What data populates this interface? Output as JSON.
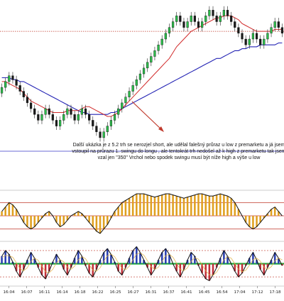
{
  "chart_data": [
    {
      "panel": "price",
      "type": "candlestick",
      "title": "",
      "annotation_lines": [
        "Další ukázka je z 5.2 trh se nerozjel short, ale udělal falešný průraz u low z premarketu a já jsem",
        "vstoupil na průrazu 1. swingu do longu , ale tentokrát trh nedošel až k high z premarketu tak jsem",
        "vzal jen \"350\" Vrchol nebo spodek swingu musí být níže high a výše u low"
      ],
      "levels": [
        {
          "name": "premarket-high",
          "value": 96,
          "style": "dotted",
          "color": "#c0392b"
        },
        {
          "name": "premarket-low",
          "value": 34,
          "style": "solid",
          "color": "#3a3ac8"
        }
      ],
      "price_range": [
        16,
        110
      ],
      "candles": [
        {
          "o": 64,
          "c": 67,
          "h": 69,
          "l": 62
        },
        {
          "o": 67,
          "c": 70,
          "h": 72,
          "l": 65
        },
        {
          "o": 70,
          "c": 73,
          "h": 75,
          "l": 68
        },
        {
          "o": 73,
          "c": 71,
          "h": 75,
          "l": 69
        },
        {
          "o": 71,
          "c": 68,
          "h": 73,
          "l": 66
        },
        {
          "o": 68,
          "c": 65,
          "h": 70,
          "l": 63
        },
        {
          "o": 65,
          "c": 62,
          "h": 67,
          "l": 60
        },
        {
          "o": 62,
          "c": 59,
          "h": 64,
          "l": 57
        },
        {
          "o": 59,
          "c": 56,
          "h": 61,
          "l": 54
        },
        {
          "o": 56,
          "c": 53,
          "h": 58,
          "l": 51
        },
        {
          "o": 53,
          "c": 50,
          "h": 55,
          "l": 48
        },
        {
          "o": 50,
          "c": 53,
          "h": 55,
          "l": 48
        },
        {
          "o": 53,
          "c": 56,
          "h": 58,
          "l": 51
        },
        {
          "o": 56,
          "c": 53,
          "h": 58,
          "l": 51
        },
        {
          "o": 53,
          "c": 50,
          "h": 55,
          "l": 48
        },
        {
          "o": 50,
          "c": 47,
          "h": 52,
          "l": 45
        },
        {
          "o": 47,
          "c": 50,
          "h": 52,
          "l": 45
        },
        {
          "o": 50,
          "c": 53,
          "h": 55,
          "l": 48
        },
        {
          "o": 53,
          "c": 56,
          "h": 58,
          "l": 51
        },
        {
          "o": 56,
          "c": 53,
          "h": 58,
          "l": 51
        },
        {
          "o": 53,
          "c": 50,
          "h": 55,
          "l": 48
        },
        {
          "o": 50,
          "c": 53,
          "h": 55,
          "l": 48
        },
        {
          "o": 53,
          "c": 56,
          "h": 58,
          "l": 51
        },
        {
          "o": 56,
          "c": 53,
          "h": 58,
          "l": 51
        },
        {
          "o": 53,
          "c": 50,
          "h": 55,
          "l": 48
        },
        {
          "o": 50,
          "c": 47,
          "h": 52,
          "l": 45
        },
        {
          "o": 47,
          "c": 44,
          "h": 49,
          "l": 42
        },
        {
          "o": 44,
          "c": 41,
          "h": 46,
          "l": 39
        },
        {
          "o": 41,
          "c": 44,
          "h": 46,
          "l": 39
        },
        {
          "o": 44,
          "c": 47,
          "h": 49,
          "l": 42
        },
        {
          "o": 47,
          "c": 50,
          "h": 52,
          "l": 45
        },
        {
          "o": 50,
          "c": 53,
          "h": 55,
          "l": 48
        },
        {
          "o": 53,
          "c": 56,
          "h": 58,
          "l": 51
        },
        {
          "o": 56,
          "c": 59,
          "h": 61,
          "l": 54
        },
        {
          "o": 59,
          "c": 62,
          "h": 64,
          "l": 57
        },
        {
          "o": 62,
          "c": 65,
          "h": 67,
          "l": 60
        },
        {
          "o": 65,
          "c": 68,
          "h": 70,
          "l": 63
        },
        {
          "o": 68,
          "c": 71,
          "h": 73,
          "l": 66
        },
        {
          "o": 71,
          "c": 74,
          "h": 76,
          "l": 69
        },
        {
          "o": 74,
          "c": 77,
          "h": 79,
          "l": 72
        },
        {
          "o": 77,
          "c": 80,
          "h": 82,
          "l": 75
        },
        {
          "o": 80,
          "c": 83,
          "h": 85,
          "l": 78
        },
        {
          "o": 83,
          "c": 86,
          "h": 88,
          "l": 81
        },
        {
          "o": 86,
          "c": 89,
          "h": 91,
          "l": 84
        },
        {
          "o": 89,
          "c": 92,
          "h": 94,
          "l": 87
        },
        {
          "o": 92,
          "c": 95,
          "h": 97,
          "l": 90
        },
        {
          "o": 95,
          "c": 98,
          "h": 100,
          "l": 93
        },
        {
          "o": 98,
          "c": 101,
          "h": 103,
          "l": 96
        },
        {
          "o": 101,
          "c": 104,
          "h": 106,
          "l": 99
        },
        {
          "o": 104,
          "c": 101,
          "h": 106,
          "l": 99
        },
        {
          "o": 101,
          "c": 98,
          "h": 103,
          "l": 96
        },
        {
          "o": 98,
          "c": 101,
          "h": 103,
          "l": 96
        },
        {
          "o": 101,
          "c": 104,
          "h": 106,
          "l": 99
        },
        {
          "o": 104,
          "c": 101,
          "h": 106,
          "l": 99
        },
        {
          "o": 101,
          "c": 98,
          "h": 103,
          "l": 96
        },
        {
          "o": 98,
          "c": 101,
          "h": 103,
          "l": 96
        },
        {
          "o": 101,
          "c": 104,
          "h": 106,
          "l": 99
        },
        {
          "o": 104,
          "c": 107,
          "h": 109,
          "l": 102
        },
        {
          "o": 107,
          "c": 104,
          "h": 109,
          "l": 102
        },
        {
          "o": 104,
          "c": 101,
          "h": 106,
          "l": 99
        },
        {
          "o": 101,
          "c": 104,
          "h": 106,
          "l": 99
        },
        {
          "o": 104,
          "c": 107,
          "h": 109,
          "l": 102
        },
        {
          "o": 107,
          "c": 104,
          "h": 109,
          "l": 102
        },
        {
          "o": 104,
          "c": 101,
          "h": 106,
          "l": 99
        },
        {
          "o": 101,
          "c": 98,
          "h": 103,
          "l": 96
        },
        {
          "o": 98,
          "c": 95,
          "h": 100,
          "l": 93
        },
        {
          "o": 95,
          "c": 92,
          "h": 97,
          "l": 90
        },
        {
          "o": 92,
          "c": 89,
          "h": 94,
          "l": 87
        },
        {
          "o": 89,
          "c": 92,
          "h": 94,
          "l": 87
        },
        {
          "o": 92,
          "c": 95,
          "h": 97,
          "l": 90
        },
        {
          "o": 95,
          "c": 92,
          "h": 97,
          "l": 90
        },
        {
          "o": 92,
          "c": 89,
          "h": 94,
          "l": 87
        },
        {
          "o": 89,
          "c": 92,
          "h": 94,
          "l": 87
        },
        {
          "o": 92,
          "c": 95,
          "h": 97,
          "l": 90
        },
        {
          "o": 95,
          "c": 98,
          "h": 100,
          "l": 93
        },
        {
          "o": 98,
          "c": 101,
          "h": 103,
          "l": 96
        },
        {
          "o": 101,
          "c": 98,
          "h": 103,
          "l": 96
        },
        {
          "o": 98,
          "c": 95,
          "h": 100,
          "l": 93
        }
      ],
      "ma_fast": [
        70,
        70,
        69,
        68,
        67,
        66,
        64,
        62,
        60,
        59,
        58,
        57,
        56,
        55,
        54,
        54,
        54,
        54,
        55,
        55,
        55,
        55,
        56,
        57,
        57,
        56,
        55,
        54,
        53,
        52,
        52,
        53,
        54,
        56,
        58,
        60,
        62,
        64,
        66,
        68,
        70,
        72,
        74,
        76,
        78,
        80,
        82,
        85,
        88,
        90,
        92,
        94,
        96,
        97,
        98,
        99,
        100,
        101,
        102,
        103,
        103,
        104,
        104,
        104,
        103,
        102,
        100,
        99,
        98,
        97,
        96,
        96,
        96,
        96,
        96,
        97,
        97,
        97
      ],
      "ma_slow": [
        72,
        72,
        72,
        71,
        71,
        70,
        70,
        69,
        68,
        67,
        66,
        65,
        64,
        63,
        62,
        61,
        60,
        59,
        58,
        57,
        56,
        55,
        54,
        54,
        53,
        53,
        53,
        53,
        53,
        53,
        54,
        54,
        55,
        56,
        57,
        58,
        59,
        60,
        61,
        62,
        63,
        64,
        65,
        66,
        67,
        68,
        69,
        70,
        71,
        72,
        73,
        74,
        75,
        76,
        77,
        78,
        79,
        80,
        81,
        82,
        82,
        83,
        84,
        85,
        86,
        86,
        87,
        87,
        88,
        88,
        88,
        89,
        89,
        89,
        89,
        89,
        90,
        90
      ],
      "x_tick_labels": [
        "16:04",
        "16:07",
        "16:11",
        "16:14",
        "16:18",
        "16:22",
        "16:25",
        "16:27",
        "16:31",
        "16:37",
        "16:41",
        "16:45",
        "16:54",
        "17:04",
        "17:12",
        "17:18"
      ]
    },
    {
      "panel": "oscillator-1",
      "type": "line+histogram",
      "levels": [
        {
          "name": "upper",
          "value": 0.6
        },
        {
          "name": "zero",
          "value": 0
        },
        {
          "name": "lower",
          "value": -0.6
        }
      ],
      "values": [
        0.2,
        0.4,
        0.6,
        0.5,
        0.3,
        0.0,
        -0.3,
        -0.5,
        -0.6,
        -0.5,
        -0.3,
        -0.1,
        0.1,
        0.2,
        0.0,
        -0.3,
        -0.5,
        -0.4,
        -0.2,
        0.0,
        0.1,
        0.2,
        0.1,
        -0.1,
        -0.3,
        -0.5,
        -0.7,
        -0.8,
        -0.6,
        -0.4,
        -0.1,
        0.2,
        0.4,
        0.6,
        0.7,
        0.8,
        0.9,
        1.0,
        1.0,
        1.0,
        0.95,
        0.9,
        0.85,
        0.9,
        0.95,
        1.0,
        1.0,
        0.95,
        0.9,
        0.85,
        0.8,
        0.85,
        0.9,
        0.95,
        1.0,
        1.0,
        0.95,
        0.9,
        0.9,
        0.95,
        1.0,
        0.95,
        0.9,
        0.8,
        0.6,
        0.3,
        0.0,
        -0.3,
        -0.5,
        -0.6,
        -0.5,
        -0.3,
        -0.1,
        0.1,
        0.3,
        0.4,
        0.2,
        0.0
      ]
    },
    {
      "panel": "oscillator-2",
      "type": "line+histogram",
      "levels": [
        {
          "name": "upper",
          "value": 0.7
        },
        {
          "name": "zero",
          "value": 0
        },
        {
          "name": "lower",
          "value": -0.7
        }
      ],
      "values": [
        0.4,
        0.7,
        0.5,
        0.1,
        -0.4,
        -0.7,
        -0.3,
        0.2,
        0.6,
        0.3,
        -0.2,
        -0.6,
        -0.8,
        -0.4,
        0.1,
        0.5,
        0.2,
        -0.3,
        -0.6,
        -0.2,
        0.3,
        0.7,
        0.4,
        -0.1,
        -0.5,
        -0.7,
        -0.3,
        0.2,
        0.6,
        0.8,
        0.5,
        0.1,
        -0.4,
        -0.6,
        -0.2,
        0.3,
        0.7,
        0.9,
        0.6,
        0.2,
        -0.2,
        -0.6,
        -0.3,
        0.2,
        0.6,
        0.8,
        0.5,
        0.0,
        -0.4,
        -0.7,
        -0.3,
        0.2,
        0.6,
        0.4,
        -0.1,
        -0.5,
        -0.8,
        -0.9,
        -0.6,
        -0.2,
        0.3,
        0.7,
        0.4,
        0.0,
        -0.4,
        -0.7,
        -0.5,
        -0.1,
        0.3,
        0.6,
        0.2,
        -0.3,
        -0.6,
        -0.2,
        0.2,
        0.6,
        0.3,
        -0.1
      ]
    }
  ]
}
